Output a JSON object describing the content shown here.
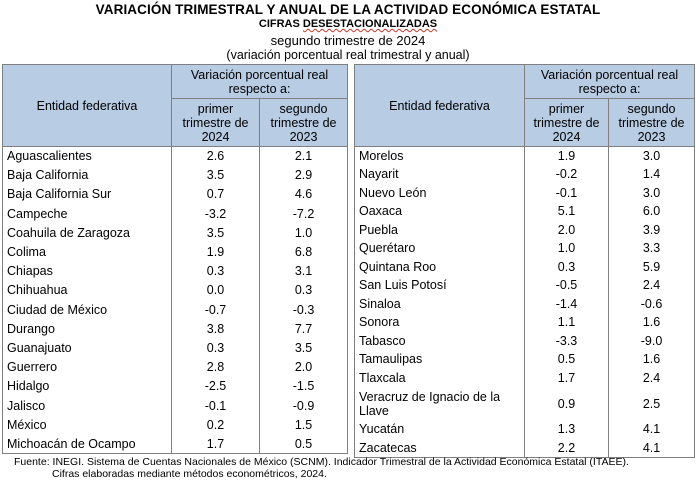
{
  "title": "VARIACIÓN TRIMESTRAL Y ANUAL DE LA ACTIVIDAD ECONÓMICA ESTATAL",
  "subtitle_prefix": "CIFRAS ",
  "subtitle_word": "DESESTACIONALIZADAS",
  "period": "segundo trimestre de 2024",
  "units": "(variación porcentual real trimestral y anual)",
  "headers": {
    "entity": "Entidad federativa",
    "group": "Variación porcentual real respecto a:",
    "col1": "primer trimestre de 2024",
    "col2": "segundo trimestre de 2023"
  },
  "left_rows": [
    {
      "entity": "Aguascalientes",
      "q1": "2.6",
      "q2": "2.1"
    },
    {
      "entity": "Baja California",
      "q1": "3.5",
      "q2": "2.9"
    },
    {
      "entity": "Baja California Sur",
      "q1": "0.7",
      "q2": "4.6"
    },
    {
      "entity": "Campeche",
      "q1": "-3.2",
      "q2": "-7.2"
    },
    {
      "entity": "Coahuila de Zaragoza",
      "q1": "3.5",
      "q2": "1.0"
    },
    {
      "entity": "Colima",
      "q1": "1.9",
      "q2": "6.8"
    },
    {
      "entity": "Chiapas",
      "q1": "0.3",
      "q2": "3.1"
    },
    {
      "entity": "Chihuahua",
      "q1": "0.0",
      "q2": "0.3"
    },
    {
      "entity": "Ciudad de México",
      "q1": "-0.7",
      "q2": "-0.3"
    },
    {
      "entity": "Durango",
      "q1": "3.8",
      "q2": "7.7"
    },
    {
      "entity": "Guanajuato",
      "q1": "0.3",
      "q2": "3.5"
    },
    {
      "entity": "Guerrero",
      "q1": "2.8",
      "q2": "2.0"
    },
    {
      "entity": "Hidalgo",
      "q1": "-2.5",
      "q2": "-1.5"
    },
    {
      "entity": "Jalisco",
      "q1": "-0.1",
      "q2": "-0.9"
    },
    {
      "entity": "México",
      "q1": "0.2",
      "q2": "1.5"
    },
    {
      "entity": "Michoacán de Ocampo",
      "q1": "1.7",
      "q2": "0.5"
    }
  ],
  "right_rows": [
    {
      "entity": "Morelos",
      "q1": "1.9",
      "q2": "3.0"
    },
    {
      "entity": "Nayarit",
      "q1": "-0.2",
      "q2": "1.4"
    },
    {
      "entity": "Nuevo León",
      "q1": "-0.1",
      "q2": "3.0"
    },
    {
      "entity": "Oaxaca",
      "q1": "5.1",
      "q2": "6.0"
    },
    {
      "entity": "Puebla",
      "q1": "2.0",
      "q2": "3.9"
    },
    {
      "entity": "Querétaro",
      "q1": "1.0",
      "q2": "3.3"
    },
    {
      "entity": "Quintana Roo",
      "q1": "0.3",
      "q2": "5.9"
    },
    {
      "entity": "San Luis Potosí",
      "q1": "-0.5",
      "q2": "2.4"
    },
    {
      "entity": "Sinaloa",
      "q1": "-1.4",
      "q2": "-0.6"
    },
    {
      "entity": "Sonora",
      "q1": "1.1",
      "q2": "1.6"
    },
    {
      "entity": "Tabasco",
      "q1": "-3.3",
      "q2": "-9.0"
    },
    {
      "entity": "Tamaulipas",
      "q1": "0.5",
      "q2": "1.6"
    },
    {
      "entity": "Tlaxcala",
      "q1": "1.7",
      "q2": "2.4"
    },
    {
      "entity": "Veracruz de Ignacio de la Llave",
      "q1": "0.9",
      "q2": "2.5"
    },
    {
      "entity": "Yucatán",
      "q1": "1.3",
      "q2": "4.1"
    },
    {
      "entity": "Zacatecas",
      "q1": "2.2",
      "q2": "4.1"
    }
  ],
  "footer": {
    "line1": "Fuente: INEGI. Sistema de Cuentas Nacionales de México (SCNM). Indicador Trimestral de la Actividad Económica Estatal (ITAEE).",
    "line2": "Cifras elaboradas mediante métodos econométricos, 2024."
  }
}
